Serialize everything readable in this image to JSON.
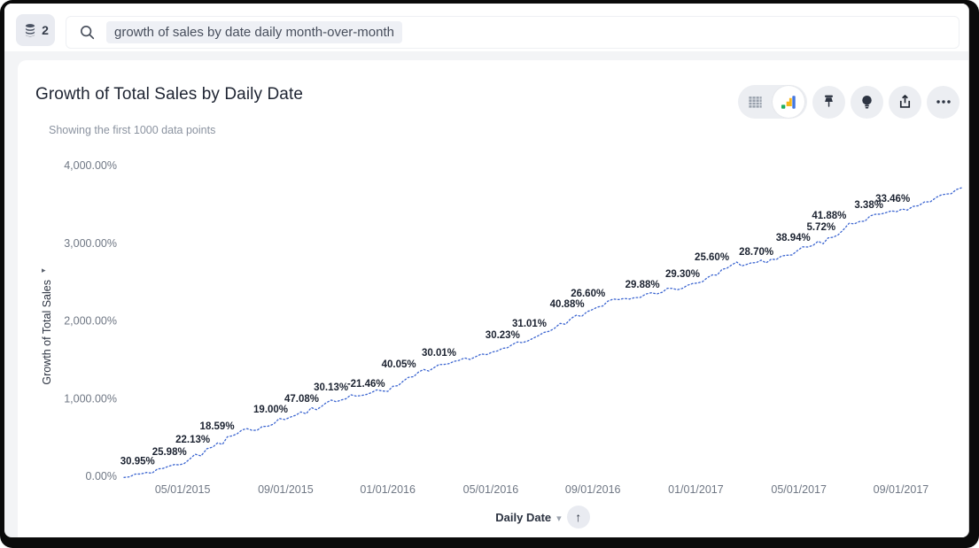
{
  "topbar": {
    "source_count": "2",
    "search_query": "growth of sales by date daily month-over-month"
  },
  "header": {
    "title": "Growth of Total Sales by Daily Date",
    "subtitle": "Showing the first 1000 data points"
  },
  "toolbar": {
    "view_toggle": [
      "table-view-icon",
      "chart-view-icon"
    ],
    "buttons": [
      "pin-icon",
      "lightbulb-icon",
      "share-icon",
      "more-options-icon"
    ],
    "selected_view": "chart"
  },
  "axis_control": {
    "label": "Daily Date",
    "caret": "▾",
    "sort_arrow": "↑"
  },
  "colors": {
    "line": "#3a64d0",
    "point_label": "#1b2230",
    "tick_label": "#6f7784",
    "icon_green": "#1fae5e",
    "icon_yellow": "#f7b718",
    "icon_blue": "#4477e0"
  },
  "chart_data": {
    "type": "line",
    "title": "Growth of Total Sales by Daily Date",
    "xlabel": "Daily Date",
    "ylabel": "Growth of Total Sales",
    "ylabel_arrow": "▸",
    "grid": false,
    "legend": "none",
    "ylim": [
      0,
      4000
    ],
    "y_ticks": [
      {
        "label": "0.00%",
        "value": 0
      },
      {
        "label": "1,000.00%",
        "value": 1000
      },
      {
        "label": "2,000.00%",
        "value": 2000
      },
      {
        "label": "3,000.00%",
        "value": 3000
      },
      {
        "label": "4,000.00%",
        "value": 4000
      }
    ],
    "x_ticks": [
      {
        "label": "05/01/2015",
        "day": 70
      },
      {
        "label": "09/01/2015",
        "day": 193
      },
      {
        "label": "01/01/2016",
        "day": 315
      },
      {
        "label": "05/01/2016",
        "day": 438
      },
      {
        "label": "09/01/2016",
        "day": 560
      },
      {
        "label": "01/01/2017",
        "day": 683
      },
      {
        "label": "05/01/2017",
        "day": 806
      },
      {
        "label": "09/01/2017",
        "day": 928
      }
    ],
    "series": [
      {
        "name": "Growth of Total Sales",
        "style": "dotted",
        "points": [
          [
            0,
            -15
          ],
          [
            20,
            30
          ],
          [
            40,
            95
          ],
          [
            60,
            150
          ],
          [
            78,
            216
          ],
          [
            106,
            376
          ],
          [
            135,
            547
          ],
          [
            165,
            640
          ],
          [
            199,
            763
          ],
          [
            236,
            900
          ],
          [
            271,
            1048
          ],
          [
            295,
            1075
          ],
          [
            315,
            1093
          ],
          [
            352,
            1344
          ],
          [
            400,
            1492
          ],
          [
            440,
            1600
          ],
          [
            476,
            1720
          ],
          [
            508,
            1868
          ],
          [
            553,
            2118
          ],
          [
            578,
            2255
          ],
          [
            610,
            2300
          ],
          [
            643,
            2369
          ],
          [
            691,
            2506
          ],
          [
            726,
            2722
          ],
          [
            755,
            2750
          ],
          [
            779,
            2790
          ],
          [
            823,
            2972
          ],
          [
            853,
            3109
          ],
          [
            866,
            3257
          ],
          [
            910,
            3394
          ],
          [
            942,
            3473
          ],
          [
            970,
            3590
          ],
          [
            1000,
            3713
          ]
        ]
      }
    ],
    "point_labels": [
      {
        "text": "30.95%",
        "day": 40,
        "pct": 95
      },
      {
        "text": "25.98%",
        "day": 78,
        "pct": 216
      },
      {
        "text": "22.13%",
        "day": 106,
        "pct": 376
      },
      {
        "text": "18.59%",
        "day": 135,
        "pct": 547
      },
      {
        "text": "19.00%",
        "day": 199,
        "pct": 763
      },
      {
        "text": "47.08%",
        "day": 236,
        "pct": 900
      },
      {
        "text": "30.13%",
        "day": 271,
        "pct": 1048
      },
      {
        "text": "-21.46%",
        "day": 315,
        "pct": 1093
      },
      {
        "text": "40.05%",
        "day": 352,
        "pct": 1344
      },
      {
        "text": "30.01%",
        "day": 400,
        "pct": 1492
      },
      {
        "text": "30.23%",
        "day": 476,
        "pct": 1720
      },
      {
        "text": "31.01%",
        "day": 508,
        "pct": 1868
      },
      {
        "text": "40.88%",
        "day": 553,
        "pct": 2118
      },
      {
        "text": "26.60%",
        "day": 578,
        "pct": 2255
      },
      {
        "text": "29.88%",
        "day": 643,
        "pct": 2369
      },
      {
        "text": "29.30%",
        "day": 691,
        "pct": 2506
      },
      {
        "text": "25.60%",
        "day": 726,
        "pct": 2722
      },
      {
        "text": "28.70%",
        "day": 779,
        "pct": 2790
      },
      {
        "text": "38.94%",
        "day": 823,
        "pct": 2972
      },
      {
        "text": "5.72%",
        "day": 853,
        "pct": 3109
      },
      {
        "text": "41.88%",
        "day": 866,
        "pct": 3257
      },
      {
        "text": "3.38%",
        "day": 910,
        "pct": 3394
      },
      {
        "text": "33.46%",
        "day": 942,
        "pct": 3473
      }
    ]
  }
}
